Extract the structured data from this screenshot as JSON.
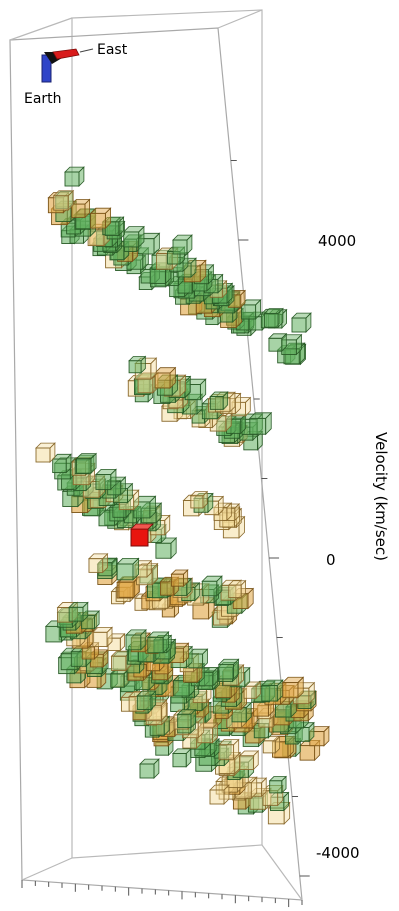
{
  "orientation": {
    "east_label": "East",
    "earth_label": "Earth",
    "east_color": "#d81b1b",
    "earth_color": "#2f44c8"
  },
  "colors": {
    "green_face": "#5fae5c",
    "green_edge": "#2a5c28",
    "tan_face": "#f3dc9a",
    "tan_edge": "#8a6a2e",
    "orange_face": "#e0a440",
    "marker_red": "#e8140f"
  },
  "chart_data": {
    "type": "scatter",
    "subtype": "3d-voxel",
    "title": "",
    "xlabel": "",
    "ylabel": "Velocity (km/sec)",
    "yticks": [
      {
        "value": 4000,
        "label": "4000"
      },
      {
        "value": 0,
        "label": "0"
      },
      {
        "value": -4000,
        "label": "-4000"
      }
    ],
    "ylim": [
      -4600,
      5500
    ],
    "marker": {
      "velocity": 300,
      "color": "red"
    },
    "clusters": [
      {
        "velocity_range": [
          3000,
          4700
        ],
        "color": "green-dominant"
      },
      {
        "velocity_range": [
          1500,
          2400
        ],
        "color": "green-and-tan"
      },
      {
        "velocity_range": [
          400,
          1400
        ],
        "color": "green-and-tan"
      },
      {
        "velocity_range": [
          -700,
          -100
        ],
        "color": "tan-and-green"
      },
      {
        "velocity_range": [
          -3500,
          -800
        ],
        "color": "green-orange-tan"
      }
    ]
  }
}
